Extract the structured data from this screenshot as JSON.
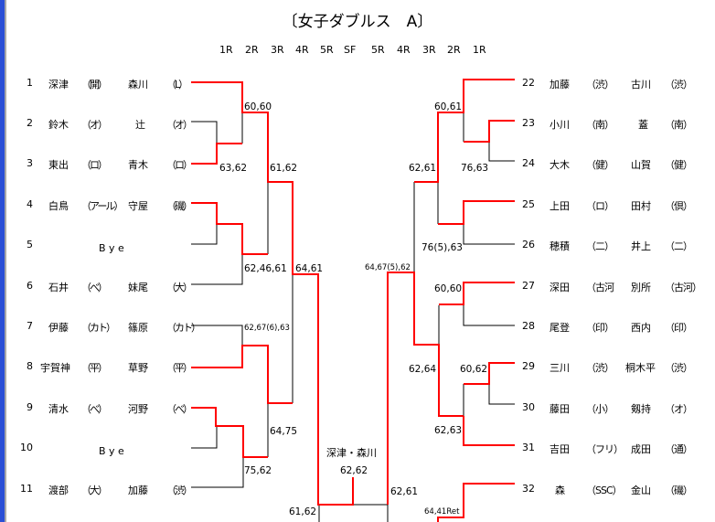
{
  "title": "〔女子ダブルス　A〕",
  "rounds_left": [
    "1R",
    "2R",
    "3R",
    "4R",
    "5R",
    "SF"
  ],
  "rounds_right": [
    "5R",
    "4R",
    "3R",
    "2R",
    "1R"
  ],
  "left_entries": [
    {
      "num": "1",
      "p1": "深津",
      "c1": "（開）",
      "p2": "森川",
      "c2": "（L）"
    },
    {
      "num": "2",
      "p1": "鈴木",
      "c1": "（オ）",
      "p2": "辻",
      "c2": "（オ）"
    },
    {
      "num": "3",
      "p1": "東出",
      "c1": "（ロ）",
      "p2": "青木",
      "c2": "（ロ）"
    },
    {
      "num": "4",
      "p1": "白鳥",
      "c1": "（アール）",
      "p2": "守屋",
      "c2": "（磯）"
    },
    {
      "num": "5",
      "bye": "B y e"
    },
    {
      "num": "6",
      "p1": "石井",
      "c1": "（べ）",
      "p2": "妹尾",
      "c2": "（大）"
    },
    {
      "num": "7",
      "p1": "伊藤",
      "c1": "（カト）",
      "p2": "篠原",
      "c2": "（カト）"
    },
    {
      "num": "8",
      "p1": "宇賀神",
      "c1": "（平）",
      "p2": "草野",
      "c2": "（平）"
    },
    {
      "num": "9",
      "p1": "清水",
      "c1": "（べ）",
      "p2": "河野",
      "c2": "（べ）"
    },
    {
      "num": "10",
      "bye": "B y e"
    },
    {
      "num": "11",
      "p1": "渡部",
      "c1": "（大）",
      "p2": "加藤",
      "c2": "（渋）"
    }
  ],
  "right_entries": [
    {
      "num": "22",
      "p1": "加藤",
      "c1": "（渋）",
      "p2": "古川",
      "c2": "（渋）"
    },
    {
      "num": "23",
      "p1": "小川",
      "c1": "（南）",
      "p2": "蓋",
      "c2": "（南）"
    },
    {
      "num": "24",
      "p1": "大木",
      "c1": "（健）",
      "p2": "山賀",
      "c2": "（健）"
    },
    {
      "num": "25",
      "p1": "上田",
      "c1": "（ロ）",
      "p2": "田村",
      "c2": "（倶）"
    },
    {
      "num": "26",
      "p1": "穂積",
      "c1": "（二）",
      "p2": "井上",
      "c2": "（二）"
    },
    {
      "num": "27",
      "p1": "深田",
      "c1": "（古河",
      "p2": "別所",
      "c2": "（古河）"
    },
    {
      "num": "28",
      "p1": "尾登",
      "c1": "（印）",
      "p2": "西内",
      "c2": "（印）"
    },
    {
      "num": "29",
      "p1": "三川",
      "c1": "（渋）",
      "p2": "桐木平",
      "c2": "（渋）"
    },
    {
      "num": "30",
      "p1": "藤田",
      "c1": "（小）",
      "p2": "剱持",
      "c2": "（オ）"
    },
    {
      "num": "31",
      "p1": "吉田",
      "c1": "（フリ）",
      "p2": "成田",
      "c2": "（通）"
    },
    {
      "num": "32",
      "p1": "森",
      "c1": "（SSC）",
      "p2": "金山",
      "c2": "（磯）"
    }
  ],
  "scores": [
    "60,60",
    "63,62",
    "61,62",
    "62,46,61",
    "64,61",
    "62,67(6),63",
    "64,75",
    "75,62",
    "62,62",
    "61,62",
    "60,61",
    "76,63",
    "62,61",
    "76(5),63",
    "64,67(5),62",
    "60,60",
    "62,64",
    "60,62",
    "62,63",
    "62,61",
    "64,41Ret"
  ],
  "winner": "深津・森川",
  "colors": {
    "winner_line": "#ff0000",
    "line": "#000000",
    "edge": "#2a4fd6"
  }
}
